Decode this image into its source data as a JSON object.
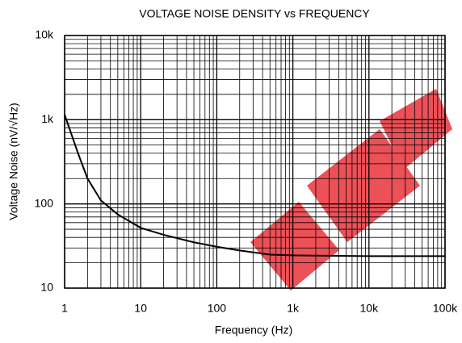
{
  "chart_data": {
    "type": "line",
    "title": "VOLTAGE NOISE DENSITY vs FREQUENCY",
    "x_label": "Frequency (Hz)",
    "y_label": "Voltage Noise  (nV/√Hz)",
    "x": [
      1,
      1.5,
      2,
      3,
      5,
      10,
      20,
      50,
      100,
      200,
      500,
      1000,
      10000,
      100000
    ],
    "series": [
      {
        "name": "Voltage Noise",
        "color": "#000000",
        "values": [
          1150,
          400,
          200,
          110,
          75,
          52,
          43,
          35,
          31,
          28,
          25,
          24.5,
          24,
          24
        ]
      }
    ],
    "xscale": "log",
    "yscale": "log",
    "xlim": [
      1,
      100000
    ],
    "xticks": [
      1,
      10,
      100,
      {
        "value": 1000,
        "label": "1k"
      },
      {
        "value": 10000,
        "label": "10k"
      },
      {
        "value": 100000,
        "label": "100k"
      }
    ],
    "ylim": [
      10,
      10000
    ],
    "yticks": [
      10,
      100,
      {
        "value": 1000,
        "label": "1k"
      },
      {
        "value": 10000,
        "label": "10k"
      }
    ],
    "grid": true,
    "minor_grid": true
  }
}
